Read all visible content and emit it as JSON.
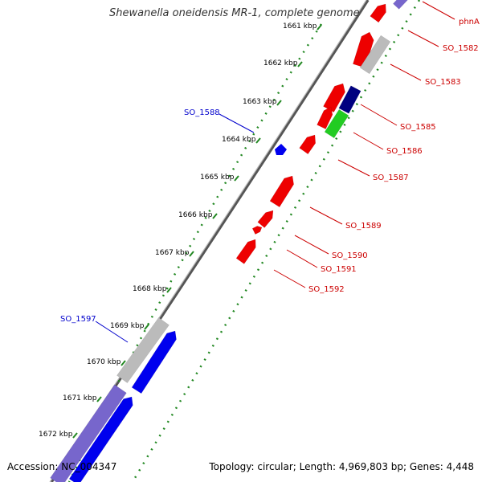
{
  "title": "Shewanella oneidensis MR-1, complete genome",
  "footer": {
    "accession": "Accession: NC_004347",
    "info": "Topology: circular; Length: 4,969,803 bp; Genes: 4,448"
  },
  "ticks": [
    "1661 kbp",
    "1662 kbp",
    "1663 kbp",
    "1664 kbp",
    "1665 kbp",
    "1666 kbp",
    "1667 kbp",
    "1668 kbp",
    "1669 kbp",
    "1670 kbp",
    "1671 kbp",
    "1672 kbp"
  ],
  "gene_labels": [
    {
      "text": "phnA",
      "strand": "reverse"
    },
    {
      "text": "SO_1582",
      "strand": "reverse"
    },
    {
      "text": "SO_1583",
      "strand": "reverse"
    },
    {
      "text": "SO_1585",
      "strand": "reverse"
    },
    {
      "text": "SO_1586",
      "strand": "reverse"
    },
    {
      "text": "SO_1587",
      "strand": "reverse"
    },
    {
      "text": "SO_1588",
      "strand": "forward"
    },
    {
      "text": "SO_1589",
      "strand": "reverse"
    },
    {
      "text": "SO_1590",
      "strand": "reverse"
    },
    {
      "text": "SO_1591",
      "strand": "reverse"
    },
    {
      "text": "SO_1592",
      "strand": "reverse"
    },
    {
      "text": "SO_1597",
      "strand": "forward"
    }
  ],
  "colors": {
    "forward_label": "#0000cc",
    "reverse_label": "#cc0000",
    "forward_gene": "#0000ee",
    "reverse_gene": "#ee0000",
    "grey_gene": "#bbbbbb",
    "navy_gene": "#000080",
    "green_gene": "#22cc22",
    "purple_gene": "#7766cc",
    "backbone": "#888888",
    "tick_marks": "#228822"
  }
}
